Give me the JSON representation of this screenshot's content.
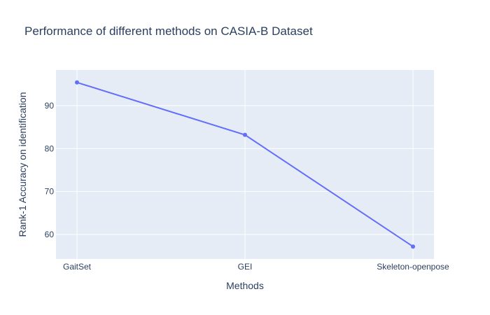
{
  "chart_data": {
    "type": "line",
    "title": "Performance of different methods on CASIA-B Dataset",
    "xlabel": "Methods",
    "ylabel": "Rank-1 Accuracy on identification",
    "categories": [
      "GaitSet",
      "GEI",
      "Skeleton-openpose"
    ],
    "series": [
      {
        "name": "Rank-1 Accuracy",
        "values": [
          95.4,
          83.2,
          57.2
        ]
      }
    ],
    "ylim": [
      54.3,
      98.3
    ],
    "yticks": [
      60,
      70,
      80,
      90
    ],
    "grid": true,
    "colors": {
      "line": "#636efa",
      "plot_bg": "#e5ecf6",
      "grid": "#ffffff",
      "text": "#2a3f5f"
    }
  }
}
